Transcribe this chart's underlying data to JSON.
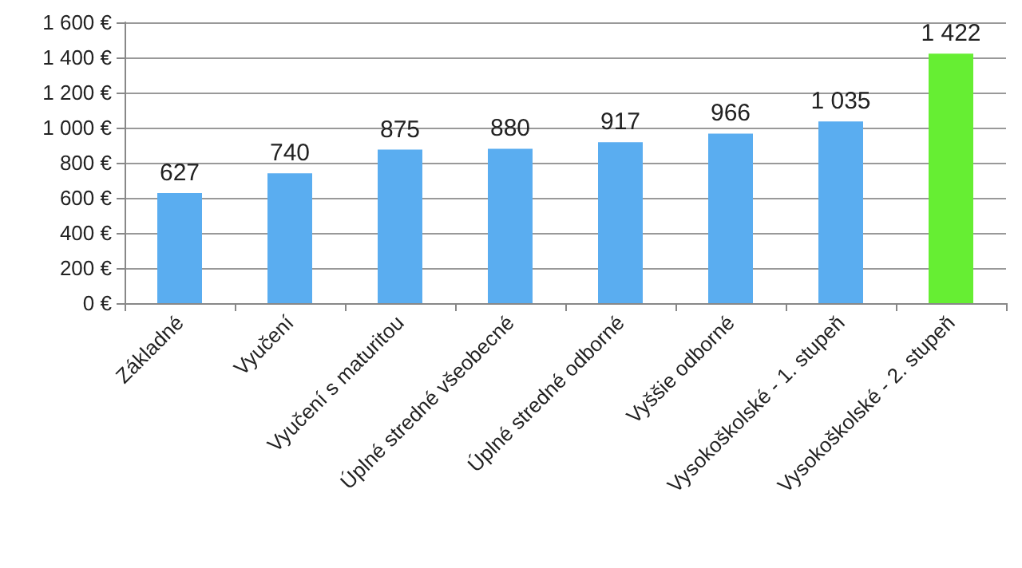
{
  "chart_data": {
    "type": "bar",
    "categories": [
      "Základné",
      "Vyučení",
      "Vyučení s maturitou",
      "Úplné stredné všeobecné",
      "Úplné stredné odborné",
      "Vyššie odborné",
      "Vysokoškolské - 1. stupeň",
      "Vysokoškolské - 2. stupeň"
    ],
    "values": [
      627,
      740,
      875,
      880,
      917,
      966,
      1035,
      1422
    ],
    "value_labels": [
      "627",
      "740",
      "875",
      "880",
      "917",
      "966",
      "1 035",
      "1 422"
    ],
    "colors": [
      "#5aadf0",
      "#5aadf0",
      "#5aadf0",
      "#5aadf0",
      "#5aadf0",
      "#5aadf0",
      "#5aadf0",
      "#66ee33"
    ],
    "ylim": [
      0,
      1600
    ],
    "yticks": [
      {
        "value": 0,
        "label": "0 €"
      },
      {
        "value": 200,
        "label": "200 €"
      },
      {
        "value": 400,
        "label": "400 €"
      },
      {
        "value": 600,
        "label": "600 €"
      },
      {
        "value": 800,
        "label": "800 €"
      },
      {
        "value": 1000,
        "label": "1 000 €"
      },
      {
        "value": 1200,
        "label": "1 200 €"
      },
      {
        "value": 1400,
        "label": "1 400 €"
      },
      {
        "value": 1600,
        "label": "1 600 €"
      }
    ],
    "grid": "y"
  }
}
